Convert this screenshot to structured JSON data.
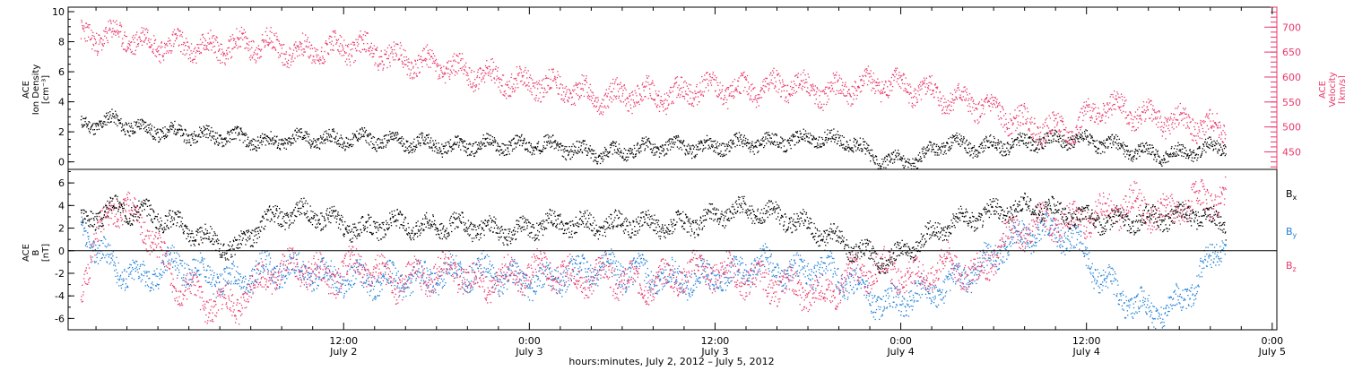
{
  "colors": {
    "black": "#000000",
    "pink": "#e8376a",
    "blue": "#1f7fd6",
    "axis": "#000000"
  },
  "chart_data": [
    {
      "type": "scatter",
      "panel": "top",
      "left_axis": {
        "title_lines": [
          "ACE",
          "Ion Density"
        ],
        "unit": "[cm⁻³]",
        "ylim": [
          -0.5,
          10.3
        ],
        "ticks": [
          0,
          2,
          4,
          6,
          8,
          10
        ]
      },
      "right_axis": {
        "title_lines": [
          "ACE",
          "Velocity"
        ],
        "unit": "[km/s]",
        "ylim": [
          415,
          740
        ],
        "ticks": [
          450,
          500,
          550,
          600,
          650,
          700
        ]
      },
      "xlim_hours": [
        -5.8,
        72.3
      ],
      "series": [
        {
          "axis": "left",
          "color": "black",
          "x": [
            -5,
            -3,
            -1,
            1,
            3,
            5,
            7,
            9,
            11,
            13,
            15,
            17,
            19,
            21,
            23,
            25,
            27,
            29,
            31,
            33,
            35,
            37,
            39,
            41,
            43,
            45,
            46,
            47,
            48,
            49,
            50,
            51,
            53,
            55,
            57,
            59,
            61,
            63,
            65,
            67,
            69
          ],
          "y": [
            2.4,
            2.8,
            2.2,
            2.0,
            1.8,
            1.7,
            1.3,
            1.6,
            1.5,
            1.6,
            1.4,
            1.3,
            1.0,
            1.2,
            1.1,
            1.2,
            0.8,
            0.6,
            0.9,
            1.1,
            1.0,
            1.2,
            1.3,
            1.5,
            1.6,
            1.3,
            0.4,
            0.1,
            0.1,
            0.1,
            0.8,
            1.3,
            1.0,
            1.2,
            1.4,
            1.6,
            1.3,
            0.8,
            0.5,
            0.7,
            1.2
          ]
        },
        {
          "axis": "right",
          "color": "pink",
          "x": [
            -5,
            -3,
            -1,
            1,
            3,
            5,
            7,
            9,
            11,
            13,
            15,
            17,
            19,
            21,
            23,
            25,
            27,
            29,
            31,
            33,
            35,
            37,
            39,
            41,
            43,
            45,
            47,
            49,
            51,
            53,
            55,
            57,
            59,
            61,
            63,
            65,
            67,
            69
          ],
          "y": [
            680,
            685,
            672,
            664,
            660,
            665,
            668,
            650,
            657,
            663,
            640,
            630,
            618,
            605,
            592,
            586,
            572,
            560,
            568,
            560,
            582,
            572,
            580,
            586,
            568,
            582,
            590,
            575,
            560,
            545,
            520,
            500,
            493,
            545,
            530,
            515,
            505,
            495
          ]
        }
      ]
    },
    {
      "type": "scatter",
      "panel": "bottom",
      "left_axis": {
        "title_lines": [
          "ACE",
          "B"
        ],
        "unit": "[nT]",
        "ylim": [
          -7,
          7.2
        ],
        "ticks": [
          -6,
          -4,
          -2,
          0,
          2,
          4,
          6
        ]
      },
      "xlim_hours": [
        -5.8,
        72.3
      ],
      "legend": [
        {
          "name": "Bx",
          "label": "B",
          "sub": "x",
          "color": "black"
        },
        {
          "name": "By",
          "label": "B",
          "sub": "y",
          "color": "blue"
        },
        {
          "name": "Bz",
          "label": "B",
          "sub": "z",
          "color": "pink"
        }
      ],
      "series": [
        {
          "name": "Bx",
          "color": "black",
          "x": [
            -5,
            -3,
            -1,
            1,
            3,
            5,
            7,
            9,
            11,
            13,
            15,
            17,
            19,
            21,
            23,
            25,
            27,
            29,
            31,
            33,
            35,
            37,
            39,
            41,
            43,
            45,
            47,
            49,
            51,
            53,
            55,
            57,
            59,
            61,
            63,
            65,
            67,
            69
          ],
          "y": [
            2.5,
            3.8,
            3.5,
            2.6,
            1.2,
            0.1,
            2.8,
            3.5,
            2.9,
            1.8,
            2.5,
            2.2,
            2.4,
            2.0,
            1.6,
            2.5,
            2.4,
            2.3,
            2.5,
            2.2,
            2.6,
            3.6,
            3.5,
            2.8,
            1.6,
            0.2,
            -1.0,
            0.6,
            2.4,
            3.1,
            3.8,
            3.9,
            3.2,
            2.6,
            2.8,
            3.0,
            3.3,
            2.2
          ]
        },
        {
          "name": "By",
          "color": "blue",
          "x": [
            -5,
            -3,
            -1,
            1,
            3,
            5,
            7,
            9,
            11,
            13,
            15,
            17,
            19,
            21,
            23,
            25,
            27,
            29,
            31,
            33,
            35,
            37,
            39,
            41,
            43,
            45,
            47,
            49,
            51,
            53,
            55,
            57,
            59,
            61,
            63,
            65,
            67,
            69
          ],
          "y": [
            1.8,
            -1.2,
            -2.4,
            -1.0,
            -2.0,
            -2.8,
            -1.5,
            -1.7,
            -2.2,
            -2.5,
            -2.6,
            -2.5,
            -2.0,
            -1.8,
            -2.5,
            -2.7,
            -1.8,
            -1.5,
            -2.0,
            -2.4,
            -2.5,
            -2.2,
            -1.0,
            -2.0,
            -1.5,
            -3.0,
            -4.8,
            -3.8,
            -3.2,
            -1.5,
            0.8,
            1.9,
            1.2,
            -2.5,
            -4.8,
            -5.5,
            -3.0,
            1.5
          ]
        },
        {
          "name": "Bz",
          "color": "pink",
          "x": [
            -5,
            -3,
            -1,
            1,
            3,
            5,
            7,
            9,
            11,
            13,
            15,
            17,
            19,
            21,
            23,
            25,
            27,
            29,
            31,
            33,
            35,
            37,
            39,
            41,
            43,
            45,
            47,
            49,
            51,
            53,
            55,
            57,
            59,
            61,
            63,
            65,
            67,
            69
          ],
          "y": [
            -3.0,
            4.2,
            2.6,
            -2.5,
            -4.5,
            -4.8,
            -2.0,
            -1.2,
            -2.5,
            -1.0,
            -2.8,
            -2.3,
            -1.5,
            -3.0,
            -2.0,
            -1.5,
            -2.5,
            -2.0,
            -3.0,
            -2.5,
            -1.5,
            -2.0,
            -2.8,
            -3.2,
            -4.0,
            -2.0,
            -1.5,
            -2.5,
            -1.0,
            -2.2,
            1.5,
            2.5,
            2.6,
            3.5,
            4.2,
            3.2,
            4.5,
            4.8
          ]
        }
      ]
    }
  ],
  "x_axis": {
    "major_ticks": [
      {
        "h": 12,
        "time": "12:00",
        "date": "July 2"
      },
      {
        "h": 24,
        "time": "0:00",
        "date": "July 3"
      },
      {
        "h": 36,
        "time": "12:00",
        "date": "July 3"
      },
      {
        "h": 48,
        "time": "0:00",
        "date": "July 4"
      },
      {
        "h": 60,
        "time": "12:00",
        "date": "July 4"
      },
      {
        "h": 72,
        "time": "0:00",
        "date": "July 5"
      }
    ],
    "label": "hours:minutes,  July  2, 2012 – July  5, 2012"
  }
}
